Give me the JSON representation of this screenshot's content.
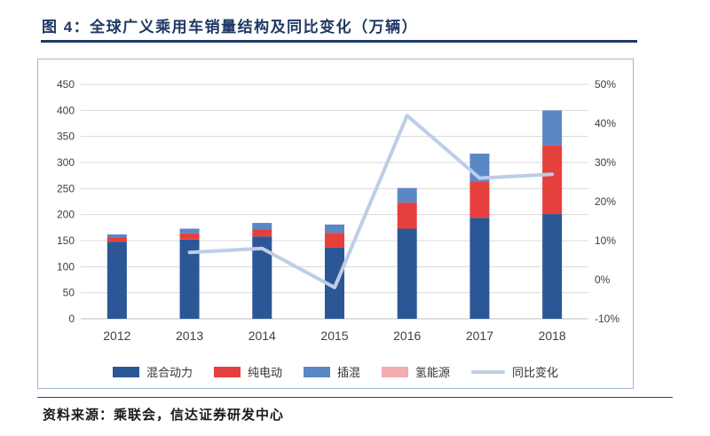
{
  "header": {
    "title": "图 4：全球广义乘用车销量结构及同比变化（万辆）"
  },
  "footer": {
    "source": "资料来源：乘联会，信达证券研发中心"
  },
  "colors": {
    "title_navy": "#1F3864",
    "chart_border": "#9FB6D4",
    "grid": "#D9D9D9",
    "axis_text": "#404040"
  },
  "chart_data": {
    "type": "bar",
    "subtype": "stacked-bar-with-line",
    "categories": [
      "2012",
      "2013",
      "2014",
      "2015",
      "2016",
      "2017",
      "2018"
    ],
    "bar_series": [
      {
        "name": "混合动力",
        "color": "#2B5797",
        "values": [
          148,
          152,
          158,
          137,
          173,
          194,
          201
        ]
      },
      {
        "name": "纯电动",
        "color": "#E6403D",
        "values": [
          8,
          12,
          14,
          28,
          50,
          70,
          132
        ]
      },
      {
        "name": "插混",
        "color": "#5B87C5",
        "values": [
          6,
          9,
          12,
          16,
          28,
          53,
          67
        ]
      },
      {
        "name": "氢能源",
        "color": "#F3ACB2",
        "values": [
          0,
          0,
          0,
          0,
          0,
          0,
          0
        ]
      }
    ],
    "line_series": {
      "name": "同比变化",
      "color": "#BDCEE6",
      "unit": "%",
      "values": [
        null,
        7,
        8,
        -2,
        42,
        26,
        27
      ]
    },
    "left_axis": {
      "min": 0,
      "max": 450,
      "ticks": [
        450,
        400,
        350,
        300,
        250,
        200,
        150,
        100,
        50,
        0
      ]
    },
    "right_axis": {
      "min": -10,
      "max": 50,
      "ticks": [
        {
          "value": 50,
          "label": "50%"
        },
        {
          "value": 40,
          "label": "40%"
        },
        {
          "value": 30,
          "label": "30%"
        },
        {
          "value": 20,
          "label": "20%"
        },
        {
          "value": 10,
          "label": "10%"
        },
        {
          "value": 0,
          "label": "0%"
        },
        {
          "value": -10,
          "label": "-10%"
        }
      ]
    },
    "grid": true,
    "legend_position": "bottom"
  }
}
